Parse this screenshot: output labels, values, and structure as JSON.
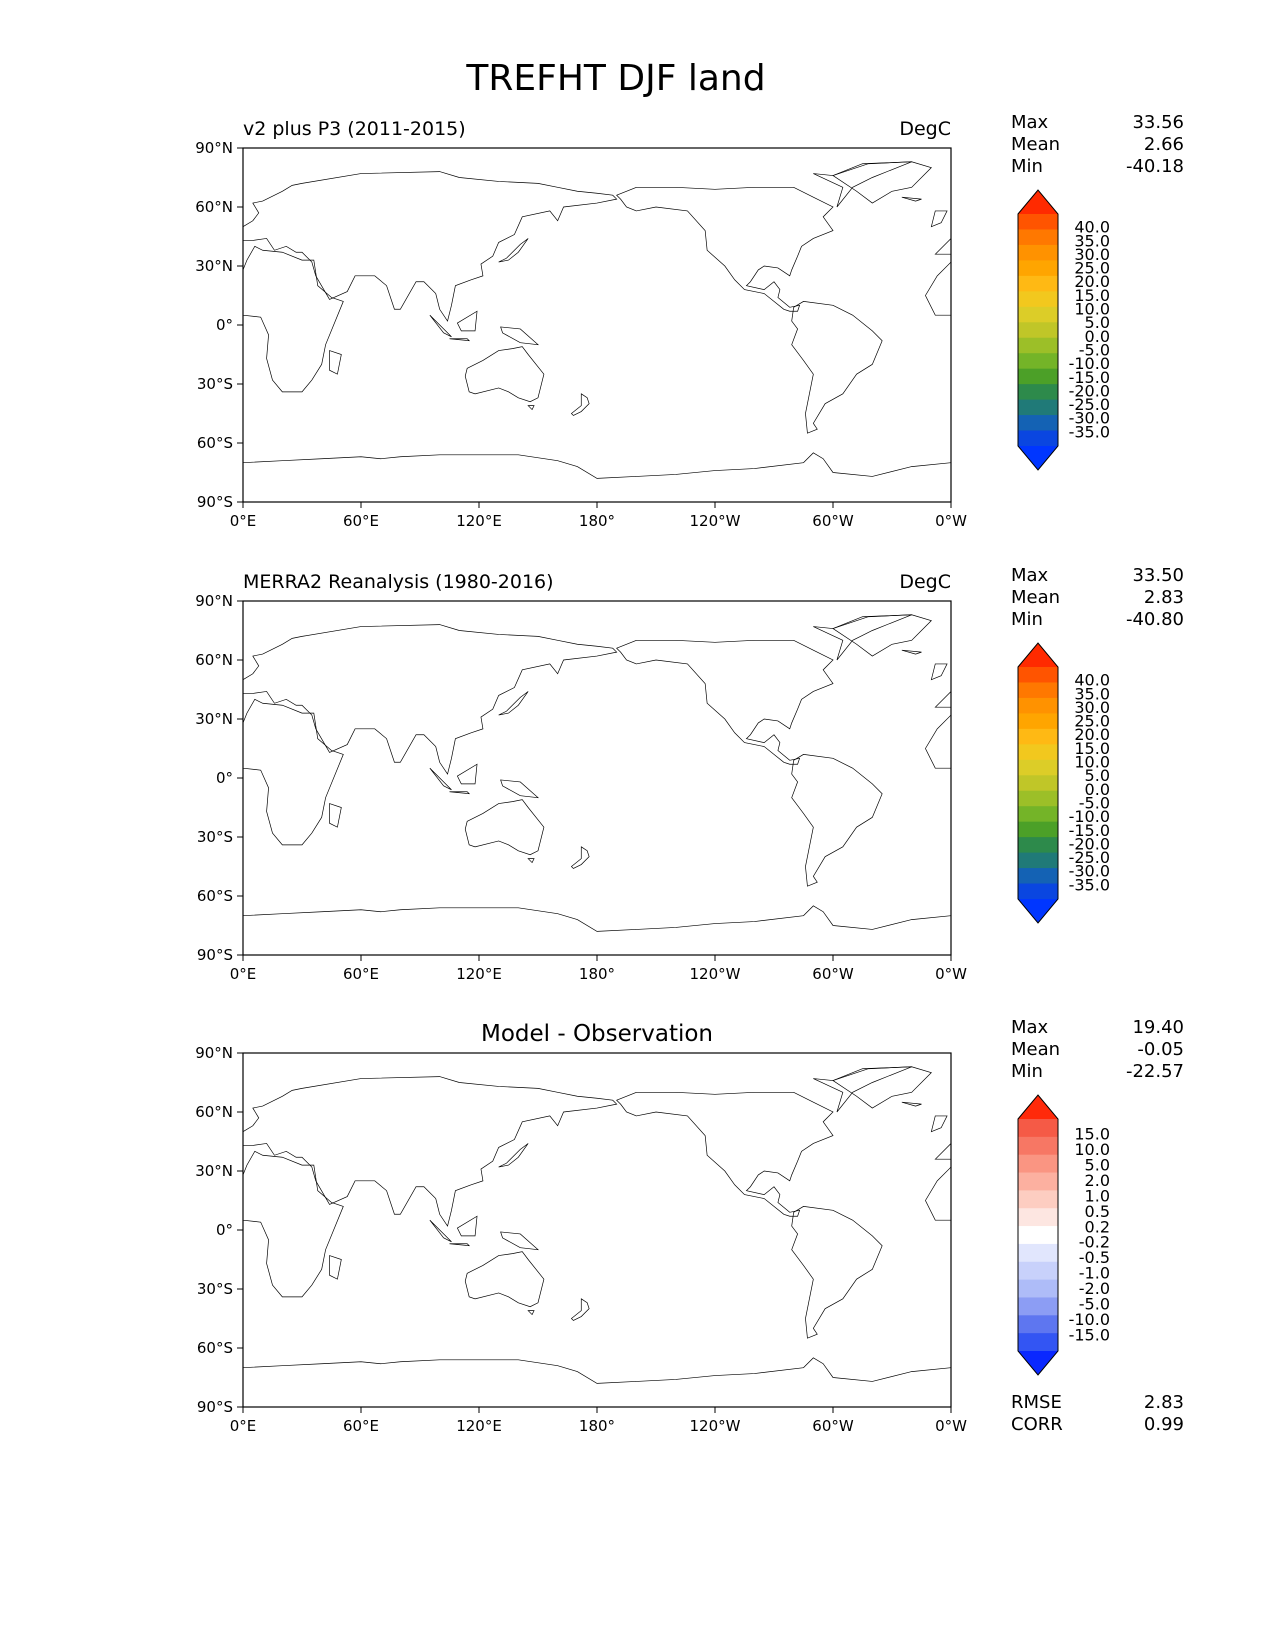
{
  "figure": {
    "title": "TREFHT DJF land"
  },
  "axes": {
    "x_ticks": [
      "0°E",
      "60°E",
      "120°E",
      "180°",
      "120°W",
      "60°W",
      "0°W"
    ],
    "y_ticks": [
      "90°N",
      "60°N",
      "30°N",
      "0°",
      "30°S",
      "60°S",
      "90°S"
    ]
  },
  "colorbars": {
    "field": {
      "levels": [
        "40.0",
        "35.0",
        "30.0",
        "25.0",
        "20.0",
        "15.0",
        "10.0",
        "5.0",
        "0.0",
        "-5.0",
        "-10.0",
        "-15.0",
        "-20.0",
        "-25.0",
        "-30.0",
        "-35.0"
      ],
      "colors": [
        "#ff2a00",
        "#ff5400",
        "#ff7800",
        "#ff9200",
        "#ffa500",
        "#ffb914",
        "#f2c81e",
        "#dccd28",
        "#c0c628",
        "#9cbf28",
        "#74b428",
        "#4ca028",
        "#2d8a4b",
        "#207a78",
        "#1462b4",
        "#0a46e0",
        "#0036ff"
      ],
      "over_color": "#ff2a00",
      "under_color": "#0036ff"
    },
    "diff": {
      "levels": [
        "15.0",
        "10.0",
        "5.0",
        "2.0",
        "1.0",
        "0.5",
        "0.2",
        "-0.2",
        "-0.5",
        "-1.0",
        "-2.0",
        "-5.0",
        "-10.0",
        "-15.0"
      ],
      "colors": [
        "#ff2a0a",
        "#f55a46",
        "#f77764",
        "#fa9582",
        "#fcb0a0",
        "#fdcdc1",
        "#fde6e1",
        "#ffffff",
        "#e1e6fd",
        "#c8d1fb",
        "#aebcf8",
        "#8c9df4",
        "#5e76f0",
        "#3355f3",
        "#0a28ff"
      ],
      "over_color": "#ff2a0a",
      "under_color": "#0a28ff"
    }
  },
  "chart_data": [
    {
      "type": "heatmap",
      "name": "v2 plus P3 (2011-2015)",
      "title": "v2 plus P3 (2011-2015)",
      "units": "DegC",
      "xlim": [
        0,
        360
      ],
      "ylim": [
        -90,
        90
      ],
      "stats": {
        "max_label": "Max",
        "max": "33.56",
        "mean_label": "Mean",
        "mean": "2.66",
        "min_label": "Min",
        "min": "-40.18"
      }
    },
    {
      "type": "heatmap",
      "name": "MERRA2 Reanalysis (1980-2016)",
      "title": "MERRA2 Reanalysis (1980-2016)",
      "units": "DegC",
      "xlim": [
        0,
        360
      ],
      "ylim": [
        -90,
        90
      ],
      "stats": {
        "max_label": "Max",
        "max": "33.50",
        "mean_label": "Mean",
        "mean": "2.83",
        "min_label": "Min",
        "min": "-40.80"
      }
    },
    {
      "type": "heatmap",
      "name": "Model - Observation",
      "title": "Model - Observation",
      "xlim": [
        0,
        360
      ],
      "ylim": [
        -90,
        90
      ],
      "stats": {
        "max_label": "Max",
        "max": "19.40",
        "mean_label": "Mean",
        "mean": "-0.05",
        "min_label": "Min",
        "min": "-22.57"
      },
      "metrics": {
        "rmse_label": "RMSE",
        "rmse": "2.83",
        "corr_label": "CORR",
        "corr": "0.99"
      }
    }
  ]
}
